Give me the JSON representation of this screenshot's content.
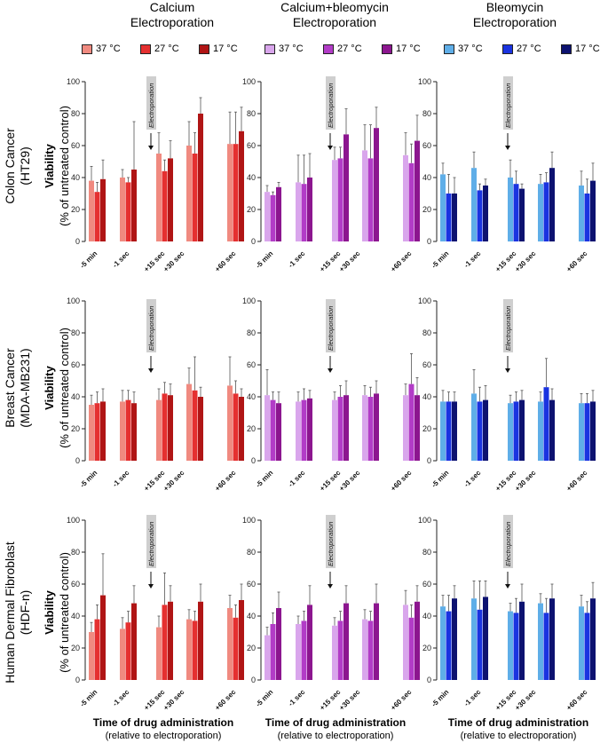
{
  "column_titles": [
    "Calcium\nElectroporation",
    "Calcium+bleomycin\nElectroporation",
    "Bleomycin\nElectroporation"
  ],
  "row_labels": [
    "Colon Cancer\n(HT29)",
    "Breast  Cancer\n(MDA-MB231)",
    "Human  Dermal Fibroblast\n(HDF-n)"
  ],
  "y_axis_label": {
    "line1": "Viability",
    "line2": "(% of untreated control)"
  },
  "x_axis_title": {
    "line1": "Time of drug administration",
    "line2": "(relative to electroporation)"
  },
  "annotation": "Electroporation",
  "legend": {
    "groups": [
      {
        "items": [
          {
            "label": "37 °C",
            "color": "#f08a80"
          },
          {
            "label": "27 °C",
            "color": "#e53030"
          },
          {
            "label": "17 °C",
            "color": "#b01515"
          }
        ]
      },
      {
        "items": [
          {
            "label": "37 °C",
            "color": "#d9a6ec"
          },
          {
            "label": "27 °C",
            "color": "#b23cc7"
          },
          {
            "label": "17 °C",
            "color": "#8c168f"
          }
        ]
      },
      {
        "items": [
          {
            "label": "37 °C",
            "color": "#5faee8"
          },
          {
            "label": "27 °C",
            "color": "#1a33e0"
          },
          {
            "label": "17 °C",
            "color": "#0d1270"
          }
        ]
      }
    ]
  },
  "chart_data": [
    {
      "type": "bar",
      "row": "Colon Cancer (HT29)",
      "column": "Calcium Electroporation",
      "categories": [
        "-5 min",
        "-1 sec",
        "+15 sec",
        "+30 sec",
        "+60 sec"
      ],
      "ylim": [
        0,
        100
      ],
      "yticks": [
        0,
        20,
        40,
        60,
        80,
        100
      ],
      "colors": [
        "#f08a80",
        "#e53030",
        "#b01515"
      ],
      "series": [
        {
          "name": "37 °C",
          "values": [
            38,
            40,
            55,
            60,
            61
          ],
          "errors": [
            9,
            5,
            13,
            15,
            20
          ]
        },
        {
          "name": "27 °C",
          "values": [
            31,
            37,
            44,
            55,
            61
          ],
          "errors": [
            6,
            3,
            7,
            13,
            20
          ]
        },
        {
          "name": "17 °C",
          "values": [
            39,
            45,
            52,
            80,
            69
          ],
          "errors": [
            12,
            30,
            11,
            10,
            15
          ]
        }
      ]
    },
    {
      "type": "bar",
      "row": "Colon Cancer (HT29)",
      "column": "Calcium+bleomycin Electroporation",
      "categories": [
        "-5 min",
        "-1 sec",
        "+15 sec",
        "+30 sec",
        "+60 sec"
      ],
      "ylim": [
        0,
        100
      ],
      "yticks": [
        0,
        20,
        40,
        60,
        80,
        100
      ],
      "colors": [
        "#d9a6ec",
        "#b23cc7",
        "#8c168f"
      ],
      "series": [
        {
          "name": "37 °C",
          "values": [
            31,
            37,
            51,
            57,
            54
          ],
          "errors": [
            4,
            17,
            8,
            16,
            14
          ]
        },
        {
          "name": "27 °C",
          "values": [
            29,
            36,
            52,
            52,
            49
          ],
          "errors": [
            2,
            18,
            7,
            21,
            12
          ]
        },
        {
          "name": "17 °C",
          "values": [
            34,
            40,
            67,
            71,
            63
          ],
          "errors": [
            3,
            15,
            16,
            13,
            16
          ]
        }
      ]
    },
    {
      "type": "bar",
      "row": "Colon Cancer (HT29)",
      "column": "Bleomycin Electroporation",
      "categories": [
        "-5 min",
        "-1 sec",
        "+15 sec",
        "+30 sec",
        "+60 sec"
      ],
      "ylim": [
        0,
        100
      ],
      "yticks": [
        0,
        20,
        40,
        60,
        80,
        100
      ],
      "colors": [
        "#5faee8",
        "#1a33e0",
        "#0d1270"
      ],
      "series": [
        {
          "name": "37 °C",
          "values": [
            42,
            46,
            40,
            36,
            35
          ],
          "errors": [
            7,
            10,
            11,
            6,
            9
          ]
        },
        {
          "name": "27 °C",
          "values": [
            30,
            32,
            36,
            37,
            30
          ],
          "errors": [
            12,
            4,
            8,
            6,
            9
          ]
        },
        {
          "name": "17 °C",
          "values": [
            30,
            35,
            33,
            46,
            38
          ],
          "errors": [
            10,
            4,
            3,
            10,
            11
          ]
        }
      ]
    },
    {
      "type": "bar",
      "row": "Breast Cancer (MDA-MB231)",
      "column": "Calcium Electroporation",
      "categories": [
        "-5 min",
        "-1 sec",
        "+15 sec",
        "+30 sec",
        "+60 sec"
      ],
      "ylim": [
        0,
        100
      ],
      "yticks": [
        0,
        20,
        40,
        60,
        80,
        100
      ],
      "colors": [
        "#f08a80",
        "#e53030",
        "#b01515"
      ],
      "series": [
        {
          "name": "37 °C",
          "values": [
            35,
            37,
            38,
            48,
            47
          ],
          "errors": [
            6,
            7,
            7,
            10,
            18
          ]
        },
        {
          "name": "27 °C",
          "values": [
            36,
            38,
            42,
            44,
            42
          ],
          "errors": [
            7,
            6,
            7,
            21,
            8
          ]
        },
        {
          "name": "17 °C",
          "values": [
            37,
            36,
            41,
            40,
            40
          ],
          "errors": [
            8,
            7,
            7,
            6,
            5
          ]
        }
      ]
    },
    {
      "type": "bar",
      "row": "Breast Cancer (MDA-MB231)",
      "column": "Calcium+bleomycin Electroporation",
      "categories": [
        "-5 min",
        "-1 sec",
        "+15 sec",
        "+30 sec",
        "+60 sec"
      ],
      "ylim": [
        0,
        100
      ],
      "yticks": [
        0,
        20,
        40,
        60,
        80,
        100
      ],
      "colors": [
        "#d9a6ec",
        "#b23cc7",
        "#8c168f"
      ],
      "series": [
        {
          "name": "37 °C",
          "values": [
            41,
            37,
            38,
            41,
            41
          ],
          "errors": [
            16,
            6,
            5,
            6,
            7
          ]
        },
        {
          "name": "27 °C",
          "values": [
            38,
            38,
            40,
            40,
            48
          ],
          "errors": [
            5,
            7,
            7,
            6,
            19
          ]
        },
        {
          "name": "17 °C",
          "values": [
            36,
            39,
            41,
            42,
            41
          ],
          "errors": [
            7,
            5,
            9,
            8,
            11
          ]
        }
      ]
    },
    {
      "type": "bar",
      "row": "Breast Cancer (MDA-MB231)",
      "column": "Bleomycin Electroporation",
      "categories": [
        "-5 min",
        "-1 sec",
        "+15 sec",
        "+30 sec",
        "+60 sec"
      ],
      "ylim": [
        0,
        100
      ],
      "yticks": [
        0,
        20,
        40,
        60,
        80,
        100
      ],
      "colors": [
        "#5faee8",
        "#1a33e0",
        "#0d1270"
      ],
      "series": [
        {
          "name": "37 °C",
          "values": [
            37,
            42,
            36,
            37,
            36
          ],
          "errors": [
            7,
            15,
            5,
            6,
            6
          ]
        },
        {
          "name": "27 °C",
          "values": [
            37,
            37,
            37,
            46,
            36
          ],
          "errors": [
            6,
            9,
            6,
            18,
            6
          ]
        },
        {
          "name": "17 °C",
          "values": [
            37,
            38,
            38,
            38,
            37
          ],
          "errors": [
            6,
            9,
            6,
            7,
            7
          ]
        }
      ]
    },
    {
      "type": "bar",
      "row": "Human Dermal Fibroblast (HDF-n)",
      "column": "Calcium Electroporation",
      "categories": [
        "-5 min",
        "-1 sec",
        "+15 sec",
        "+30 sec",
        "+60 sec"
      ],
      "ylim": [
        0,
        100
      ],
      "yticks": [
        0,
        20,
        40,
        60,
        80,
        100
      ],
      "colors": [
        "#f08a80",
        "#e53030",
        "#b01515"
      ],
      "series": [
        {
          "name": "37 °C",
          "values": [
            30,
            32,
            33,
            38,
            45
          ],
          "errors": [
            6,
            7,
            7,
            6,
            8
          ]
        },
        {
          "name": "27 °C",
          "values": [
            38,
            36,
            47,
            37,
            39
          ],
          "errors": [
            9,
            7,
            20,
            6,
            8
          ]
        },
        {
          "name": "17 °C",
          "values": [
            53,
            48,
            49,
            49,
            50
          ],
          "errors": [
            26,
            11,
            10,
            11,
            10
          ]
        }
      ]
    },
    {
      "type": "bar",
      "row": "Human Dermal Fibroblast (HDF-n)",
      "column": "Calcium+bleomycin Electroporation",
      "categories": [
        "-5 min",
        "-1 sec",
        "+15 sec",
        "+30 sec",
        "+60 sec"
      ],
      "ylim": [
        0,
        100
      ],
      "yticks": [
        0,
        20,
        40,
        60,
        80,
        100
      ],
      "colors": [
        "#d9a6ec",
        "#b23cc7",
        "#8c168f"
      ],
      "series": [
        {
          "name": "37 °C",
          "values": [
            28,
            35,
            34,
            38,
            47
          ],
          "errors": [
            5,
            5,
            5,
            6,
            9
          ]
        },
        {
          "name": "27 °C",
          "values": [
            35,
            37,
            37,
            37,
            39
          ],
          "errors": [
            7,
            6,
            6,
            6,
            8
          ]
        },
        {
          "name": "17 °C",
          "values": [
            45,
            47,
            48,
            48,
            49
          ],
          "errors": [
            10,
            12,
            11,
            12,
            10
          ]
        }
      ]
    },
    {
      "type": "bar",
      "row": "Human Dermal Fibroblast (HDF-n)",
      "column": "Bleomycin Electroporation",
      "categories": [
        "-5 min",
        "-1 sec",
        "+15 sec",
        "+30 sec",
        "+60 sec"
      ],
      "ylim": [
        0,
        100
      ],
      "yticks": [
        0,
        20,
        40,
        60,
        80,
        100
      ],
      "colors": [
        "#5faee8",
        "#1a33e0",
        "#0d1270"
      ],
      "series": [
        {
          "name": "37 °C",
          "values": [
            46,
            51,
            43,
            48,
            46
          ],
          "errors": [
            7,
            11,
            5,
            6,
            7
          ]
        },
        {
          "name": "27 °C",
          "values": [
            43,
            44,
            42,
            42,
            42
          ],
          "errors": [
            10,
            18,
            9,
            9,
            7
          ]
        },
        {
          "name": "17 °C",
          "values": [
            51,
            52,
            49,
            51,
            51
          ],
          "errors": [
            8,
            10,
            11,
            9,
            10
          ]
        }
      ]
    }
  ]
}
